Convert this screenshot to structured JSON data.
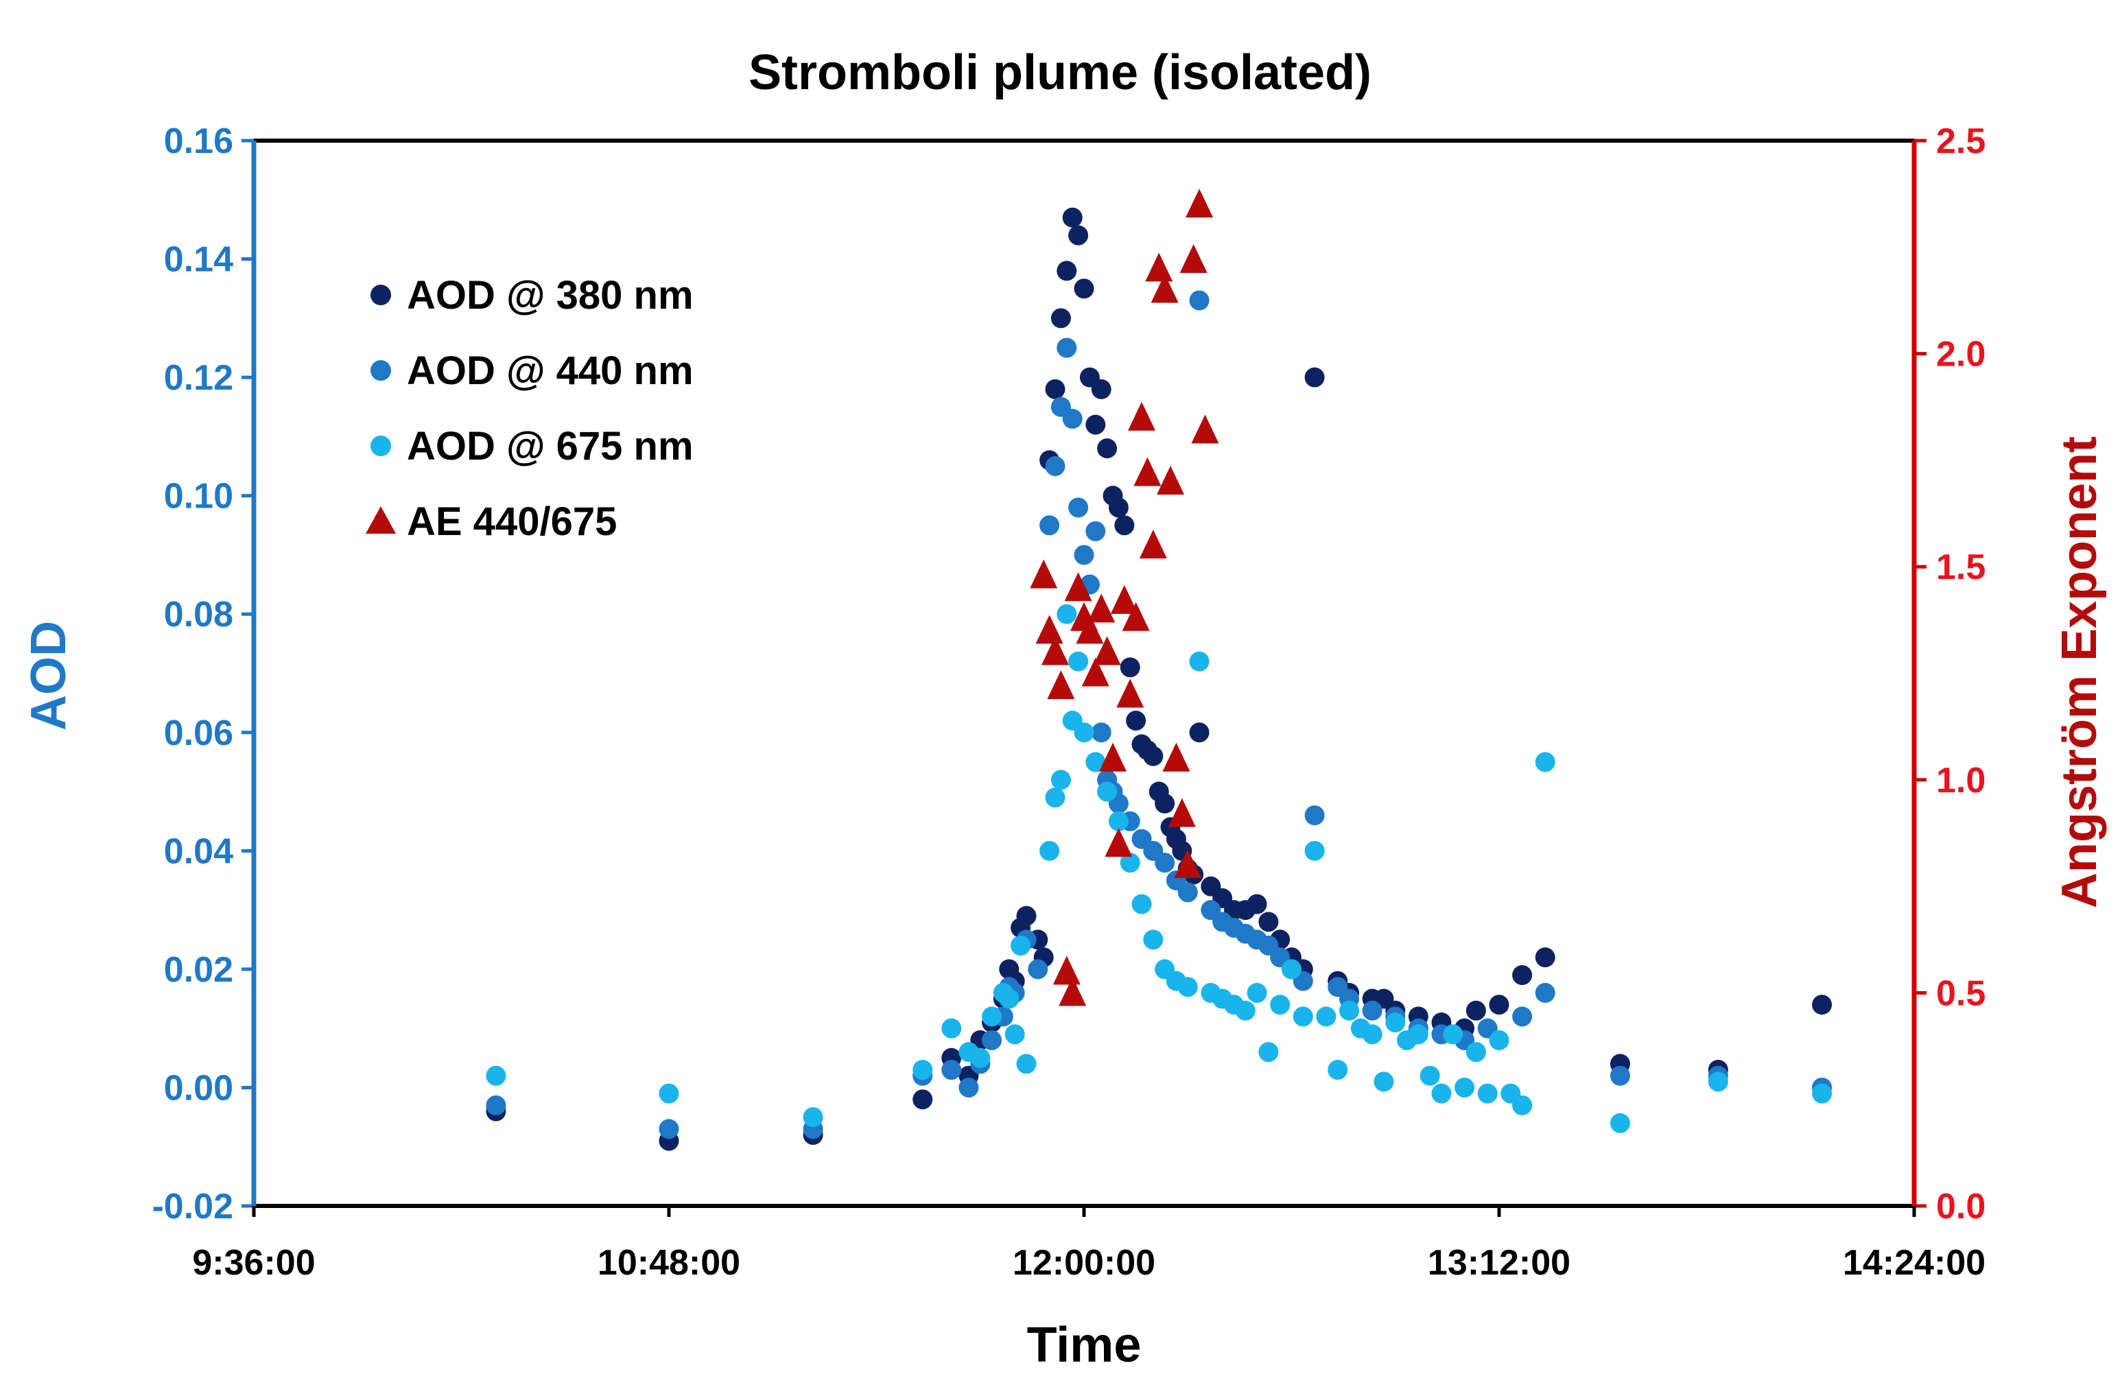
{
  "chart_data": {
    "type": "scatter",
    "title": "Stromboli plume (isolated)",
    "xlabel": "Time",
    "ylabel": "AOD",
    "y2label": "Angström Exponent",
    "x_ticks": [
      "9:36:00",
      "10:48:00",
      "12:00:00",
      "13:12:00",
      "14:24:00"
    ],
    "xlim_minutes": [
      576,
      864
    ],
    "ylim": [
      -0.02,
      0.16
    ],
    "y_ticks": [
      "-0.02",
      "0.00",
      "0.02",
      "0.04",
      "0.06",
      "0.08",
      "0.10",
      "0.12",
      "0.14",
      "0.16"
    ],
    "y2lim": [
      0.0,
      2.5
    ],
    "y2_ticks": [
      "0.0",
      "0.5",
      "1.0",
      "1.5",
      "2.0",
      "2.5"
    ],
    "legend_position": "top-left",
    "colors": {
      "aod380": "#0d2260",
      "aod440": "#1f78c8",
      "aod675": "#19b4eb",
      "ae": "#b40a0a",
      "left_axis": "#1f78c8",
      "right_axis": "#e8141e"
    },
    "series": [
      {
        "name": "AOD @ 380 nm",
        "key": "aod380",
        "marker": "circle",
        "axis": "left",
        "x_min": [
          618,
          648,
          673,
          692,
          697,
          700,
          702,
          704,
          706,
          707,
          708,
          709,
          710,
          712,
          713,
          714,
          715,
          716,
          717,
          718,
          719,
          720,
          721,
          722,
          723,
          724,
          725,
          726,
          727,
          728,
          729,
          730,
          731,
          732,
          733,
          734,
          735,
          736,
          737,
          738,
          739,
          740,
          742,
          744,
          746,
          748,
          750,
          752,
          754,
          756,
          758,
          760,
          764,
          766,
          770,
          772,
          774,
          778,
          782,
          786,
          788,
          792,
          796,
          800,
          848,
          813,
          830
        ],
        "y": [
          -0.004,
          -0.009,
          -0.008,
          -0.002,
          0.005,
          0.002,
          0.008,
          0.011,
          0.015,
          0.02,
          0.018,
          0.027,
          0.029,
          0.025,
          0.022,
          0.106,
          0.118,
          0.13,
          0.138,
          0.147,
          0.144,
          0.135,
          0.12,
          0.112,
          0.118,
          0.108,
          0.1,
          0.098,
          0.095,
          0.071,
          0.062,
          0.058,
          0.057,
          0.056,
          0.05,
          0.048,
          0.044,
          0.042,
          0.04,
          0.037,
          0.036,
          0.06,
          0.034,
          0.032,
          0.03,
          0.03,
          0.031,
          0.028,
          0.025,
          0.022,
          0.02,
          0.12,
          0.018,
          0.016,
          0.015,
          0.015,
          0.013,
          0.012,
          0.011,
          0.01,
          0.013,
          0.014,
          0.019,
          0.022,
          0.014,
          0.004,
          0.003
        ]
      },
      {
        "name": "AOD @ 440 nm",
        "key": "aod440",
        "marker": "circle",
        "axis": "left",
        "x_min": [
          618,
          648,
          673,
          692,
          697,
          700,
          702,
          704,
          706,
          707,
          708,
          709,
          710,
          712,
          714,
          715,
          716,
          717,
          718,
          719,
          720,
          721,
          722,
          723,
          724,
          725,
          726,
          728,
          730,
          732,
          734,
          736,
          738,
          740,
          742,
          744,
          746,
          748,
          750,
          752,
          754,
          756,
          758,
          760,
          764,
          766,
          770,
          774,
          778,
          782,
          786,
          790,
          796,
          800,
          813,
          830,
          848
        ],
        "y": [
          -0.003,
          -0.007,
          -0.007,
          0.002,
          0.003,
          0.0,
          0.004,
          0.008,
          0.012,
          0.017,
          0.016,
          0.024,
          0.025,
          0.02,
          0.095,
          0.105,
          0.115,
          0.125,
          0.113,
          0.098,
          0.09,
          0.085,
          0.094,
          0.06,
          0.052,
          0.05,
          0.048,
          0.045,
          0.042,
          0.04,
          0.038,
          0.035,
          0.033,
          0.133,
          0.03,
          0.028,
          0.027,
          0.026,
          0.025,
          0.024,
          0.022,
          0.02,
          0.018,
          0.046,
          0.017,
          0.015,
          0.013,
          0.012,
          0.01,
          0.009,
          0.008,
          0.01,
          0.012,
          0.016,
          0.002,
          0.002,
          0.0
        ]
      },
      {
        "name": "AOD @ 675 nm",
        "key": "aod675",
        "marker": "circle",
        "axis": "left",
        "x_min": [
          618,
          648,
          673,
          692,
          697,
          700,
          702,
          704,
          706,
          707,
          708,
          709,
          710,
          714,
          715,
          716,
          717,
          718,
          719,
          720,
          722,
          724,
          726,
          728,
          730,
          732,
          734,
          736,
          738,
          740,
          742,
          744,
          746,
          748,
          750,
          752,
          754,
          756,
          758,
          760,
          762,
          764,
          766,
          768,
          770,
          772,
          774,
          776,
          778,
          780,
          782,
          784,
          786,
          788,
          790,
          792,
          794,
          796,
          800,
          813,
          830,
          848
        ],
        "y": [
          0.002,
          -0.001,
          -0.005,
          0.003,
          0.01,
          0.006,
          0.005,
          0.012,
          0.016,
          0.015,
          0.009,
          0.024,
          0.004,
          0.04,
          0.049,
          0.052,
          0.08,
          0.062,
          0.072,
          0.06,
          0.055,
          0.05,
          0.045,
          0.038,
          0.031,
          0.025,
          0.02,
          0.018,
          0.017,
          0.072,
          0.016,
          0.015,
          0.014,
          0.013,
          0.016,
          0.006,
          0.014,
          0.02,
          0.012,
          0.04,
          0.012,
          0.003,
          0.013,
          0.01,
          0.009,
          0.001,
          0.011,
          0.008,
          0.009,
          0.002,
          -0.001,
          0.009,
          0.0,
          0.006,
          -0.001,
          0.008,
          -0.001,
          -0.003,
          0.055,
          -0.006,
          0.001,
          -0.001
        ]
      },
      {
        "name": "AE 440/675",
        "key": "ae",
        "marker": "triangle",
        "axis": "right",
        "x_min": [
          713,
          714,
          715,
          716,
          717,
          718,
          719,
          720,
          721,
          722,
          723,
          724,
          725,
          726,
          727,
          728,
          729,
          730,
          731,
          732,
          733,
          734,
          735,
          736,
          737,
          738,
          739,
          740,
          741
        ],
        "y": [
          1.48,
          1.35,
          1.3,
          1.22,
          0.55,
          0.5,
          1.45,
          1.38,
          1.35,
          1.25,
          1.4,
          1.3,
          1.05,
          0.85,
          1.42,
          1.2,
          1.38,
          1.85,
          1.72,
          1.55,
          2.2,
          2.15,
          1.7,
          1.05,
          0.92,
          0.8,
          2.22,
          2.35,
          1.82
        ]
      }
    ]
  }
}
